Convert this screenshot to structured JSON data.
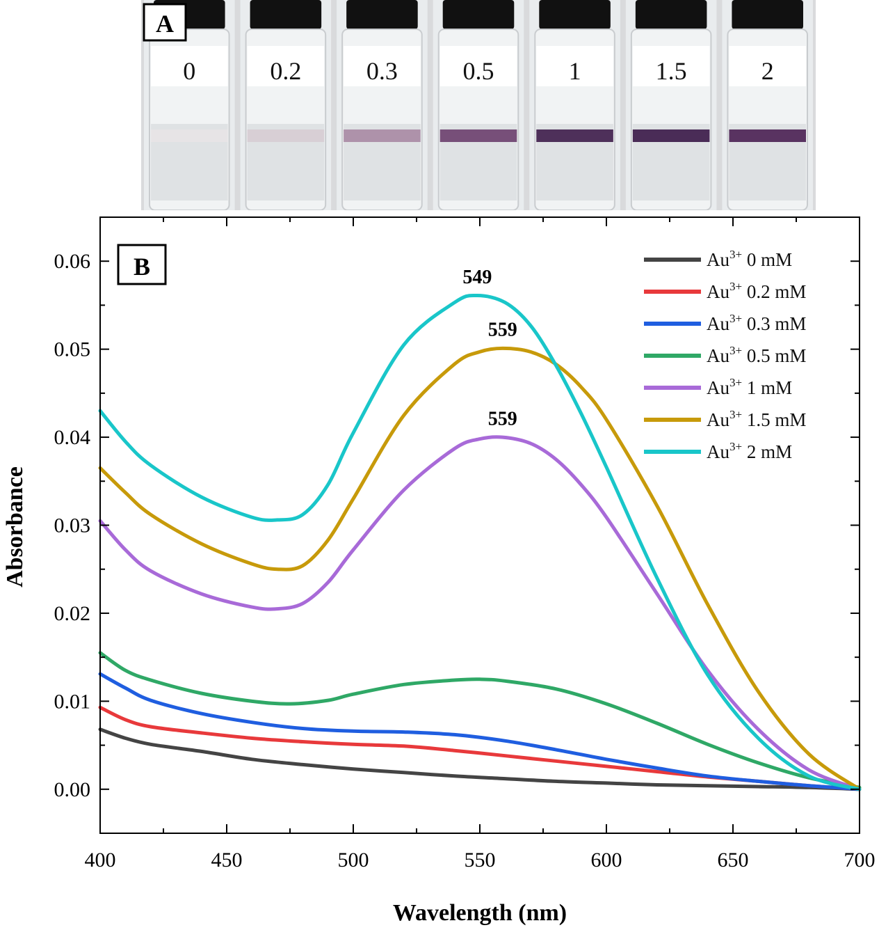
{
  "photo": {
    "panel_label": "A",
    "vials": [
      {
        "label": "0",
        "band_color": "#e8e4e6"
      },
      {
        "label": "0.2",
        "band_color": "#d7cdd3"
      },
      {
        "label": "0.3",
        "band_color": "#a98aa3"
      },
      {
        "label": "0.5",
        "band_color": "#6c3f6d"
      },
      {
        "label": "1",
        "band_color": "#3e1d4a"
      },
      {
        "label": "1.5",
        "band_color": "#3a1847"
      },
      {
        "label": "2",
        "band_color": "#4a2052"
      }
    ]
  },
  "chart_data": {
    "type": "line",
    "panel_label": "B",
    "xlabel": "Wavelength (nm)",
    "ylabel": "Absorbance",
    "xlim": [
      400,
      700
    ],
    "ylim": [
      -0.005,
      0.065
    ],
    "xticks": [
      400,
      450,
      500,
      550,
      600,
      650,
      700
    ],
    "yticks": [
      0.0,
      0.01,
      0.02,
      0.03,
      0.04,
      0.05,
      0.06
    ],
    "ytick_labels": [
      "0.00",
      "0.01",
      "0.02",
      "0.03",
      "0.04",
      "0.05",
      "0.06"
    ],
    "legend_position": "top-right",
    "series": [
      {
        "name": "Au3+ 0 mM",
        "legend_prefix": "Au",
        "legend_sup": "3+",
        "legend_suffix": " 0 mM",
        "color": "#444444",
        "points": [
          [
            400,
            0.0068
          ],
          [
            410,
            0.0058
          ],
          [
            420,
            0.0051
          ],
          [
            440,
            0.0043
          ],
          [
            460,
            0.0034
          ],
          [
            480,
            0.0028
          ],
          [
            500,
            0.0023
          ],
          [
            520,
            0.0019
          ],
          [
            540,
            0.0015
          ],
          [
            560,
            0.0012
          ],
          [
            580,
            0.0009
          ],
          [
            600,
            0.0007
          ],
          [
            620,
            0.0005
          ],
          [
            640,
            0.0004
          ],
          [
            660,
            0.0003
          ],
          [
            680,
            0.0002
          ],
          [
            700,
            0.0
          ]
        ]
      },
      {
        "name": "Au3+ 0.2 mM",
        "legend_prefix": "Au",
        "legend_sup": "3+",
        "legend_suffix": " 0.2 mM",
        "color": "#e8393b",
        "points": [
          [
            400,
            0.0093
          ],
          [
            410,
            0.0079
          ],
          [
            420,
            0.0071
          ],
          [
            440,
            0.0064
          ],
          [
            460,
            0.0058
          ],
          [
            480,
            0.0054
          ],
          [
            500,
            0.0051
          ],
          [
            520,
            0.0049
          ],
          [
            540,
            0.0044
          ],
          [
            560,
            0.0038
          ],
          [
            580,
            0.0032
          ],
          [
            600,
            0.0026
          ],
          [
            620,
            0.002
          ],
          [
            640,
            0.0014
          ],
          [
            660,
            0.0009
          ],
          [
            680,
            0.0004
          ],
          [
            700,
            0.0
          ]
        ]
      },
      {
        "name": "Au3+ 0.3 mM",
        "legend_prefix": "Au",
        "legend_sup": "3+",
        "legend_suffix": " 0.3 mM",
        "color": "#1f5ee0",
        "points": [
          [
            400,
            0.0131
          ],
          [
            410,
            0.0115
          ],
          [
            420,
            0.0101
          ],
          [
            440,
            0.0086
          ],
          [
            460,
            0.0076
          ],
          [
            480,
            0.0069
          ],
          [
            500,
            0.0066
          ],
          [
            520,
            0.0065
          ],
          [
            540,
            0.0062
          ],
          [
            560,
            0.0055
          ],
          [
            580,
            0.0045
          ],
          [
            600,
            0.0034
          ],
          [
            620,
            0.0024
          ],
          [
            640,
            0.0015
          ],
          [
            660,
            0.0009
          ],
          [
            680,
            0.0004
          ],
          [
            700,
            0.0
          ]
        ]
      },
      {
        "name": "Au3+ 0.5 mM",
        "legend_prefix": "Au",
        "legend_sup": "3+",
        "legend_suffix": " 0.5 mM",
        "color": "#2fa866",
        "points": [
          [
            400,
            0.0155
          ],
          [
            410,
            0.0135
          ],
          [
            420,
            0.0124
          ],
          [
            440,
            0.0109
          ],
          [
            460,
            0.01
          ],
          [
            475,
            0.0097
          ],
          [
            490,
            0.0101
          ],
          [
            500,
            0.0108
          ],
          [
            520,
            0.0119
          ],
          [
            540,
            0.0124
          ],
          [
            550,
            0.0125
          ],
          [
            560,
            0.0123
          ],
          [
            580,
            0.0114
          ],
          [
            600,
            0.0097
          ],
          [
            620,
            0.0075
          ],
          [
            640,
            0.0051
          ],
          [
            660,
            0.003
          ],
          [
            680,
            0.0013
          ],
          [
            700,
            0.0002
          ]
        ]
      },
      {
        "name": "Au3+ 1 mM",
        "legend_prefix": "Au",
        "legend_sup": "3+",
        "legend_suffix": " 1 mM",
        "color": "#a86ad8",
        "points": [
          [
            400,
            0.0305
          ],
          [
            410,
            0.0272
          ],
          [
            420,
            0.0248
          ],
          [
            440,
            0.0222
          ],
          [
            460,
            0.0207
          ],
          [
            470,
            0.0205
          ],
          [
            480,
            0.0211
          ],
          [
            490,
            0.0235
          ],
          [
            500,
            0.0272
          ],
          [
            520,
            0.034
          ],
          [
            540,
            0.0387
          ],
          [
            550,
            0.0398
          ],
          [
            559,
            0.04
          ],
          [
            570,
            0.0393
          ],
          [
            580,
            0.0375
          ],
          [
            590,
            0.0346
          ],
          [
            600,
            0.0309
          ],
          [
            620,
            0.0222
          ],
          [
            640,
            0.0135
          ],
          [
            660,
            0.0068
          ],
          [
            680,
            0.0022
          ],
          [
            700,
            0.0
          ]
        ]
      },
      {
        "name": "Au3+ 1.5 mM",
        "legend_prefix": "Au",
        "legend_sup": "3+",
        "legend_suffix": " 1.5 mM",
        "color": "#c79a0a",
        "points": [
          [
            400,
            0.0365
          ],
          [
            410,
            0.0337
          ],
          [
            420,
            0.0312
          ],
          [
            440,
            0.0279
          ],
          [
            460,
            0.0256
          ],
          [
            470,
            0.025
          ],
          [
            480,
            0.0254
          ],
          [
            490,
            0.0283
          ],
          [
            500,
            0.033
          ],
          [
            520,
            0.0425
          ],
          [
            540,
            0.0483
          ],
          [
            550,
            0.0497
          ],
          [
            559,
            0.0501
          ],
          [
            570,
            0.0497
          ],
          [
            580,
            0.0483
          ],
          [
            590,
            0.0457
          ],
          [
            600,
            0.042
          ],
          [
            620,
            0.0322
          ],
          [
            640,
            0.021
          ],
          [
            660,
            0.0111
          ],
          [
            680,
            0.004
          ],
          [
            700,
            0.0
          ]
        ]
      },
      {
        "name": "Au3+ 2 mM",
        "legend_prefix": "Au",
        "legend_sup": "3+",
        "legend_suffix": " 2 mM",
        "color": "#19c6c9",
        "points": [
          [
            400,
            0.043
          ],
          [
            410,
            0.0395
          ],
          [
            420,
            0.0368
          ],
          [
            440,
            0.0332
          ],
          [
            460,
            0.0309
          ],
          [
            470,
            0.0306
          ],
          [
            480,
            0.0312
          ],
          [
            490,
            0.0346
          ],
          [
            500,
            0.0405
          ],
          [
            520,
            0.0505
          ],
          [
            540,
            0.0553
          ],
          [
            549,
            0.0561
          ],
          [
            560,
            0.0553
          ],
          [
            570,
            0.0527
          ],
          [
            580,
            0.0482
          ],
          [
            590,
            0.0427
          ],
          [
            600,
            0.0366
          ],
          [
            620,
            0.024
          ],
          [
            640,
            0.013
          ],
          [
            660,
            0.0058
          ],
          [
            680,
            0.0015
          ],
          [
            700,
            0.0
          ]
        ]
      }
    ],
    "annotations": [
      {
        "text": "549",
        "x": 549,
        "y": 0.0575
      },
      {
        "text": "559",
        "x": 559,
        "y": 0.0515
      },
      {
        "text": "559",
        "x": 559,
        "y": 0.0414
      }
    ]
  }
}
